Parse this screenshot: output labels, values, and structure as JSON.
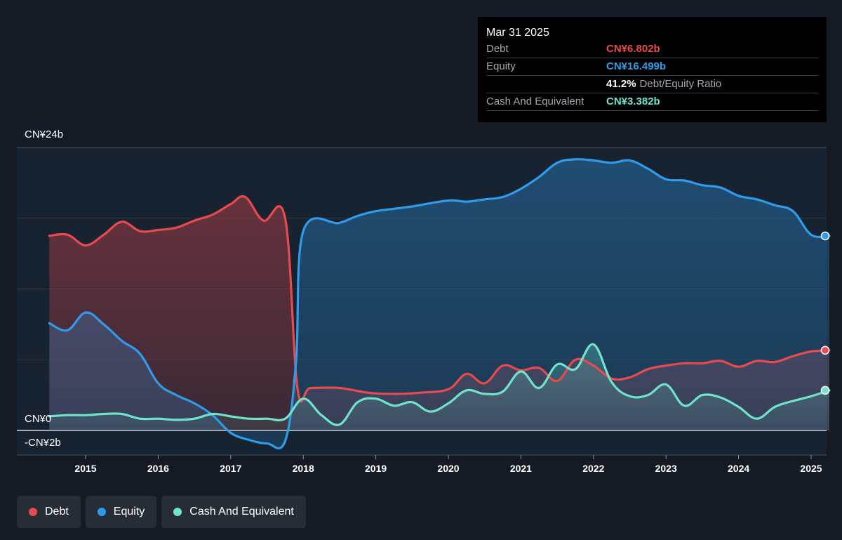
{
  "tooltip": {
    "date": "Mar 31 2025",
    "debt_label": "Debt",
    "debt_value": "CN¥6.802b",
    "equity_label": "Equity",
    "equity_value": "CN¥16.499b",
    "ratio_value": "41.2%",
    "ratio_label": "Debt/Equity Ratio",
    "cash_label": "Cash And Equivalent",
    "cash_value": "CN¥3.382b"
  },
  "y_axis": {
    "top_label": "CN¥24b",
    "zero_label": "CN¥0",
    "bottom_label": "-CN¥2b"
  },
  "legend": [
    {
      "label": "Debt",
      "color": "#e84a4f"
    },
    {
      "label": "Equity",
      "color": "#2f9bea"
    },
    {
      "label": "Cash And Equivalent",
      "color": "#6fe3cc"
    }
  ],
  "chart_data": {
    "type": "area",
    "x_ticks": [
      "2015",
      "2016",
      "2017",
      "2018",
      "2019",
      "2020",
      "2021",
      "2022",
      "2023",
      "2024",
      "2025"
    ],
    "ylim": [
      -2,
      24
    ],
    "grid": true,
    "series": [
      {
        "name": "Debt",
        "color": "#e84a4f",
        "points": [
          [
            2014.5,
            16.5
          ],
          [
            2014.75,
            16.6
          ],
          [
            2015.0,
            15.7
          ],
          [
            2015.25,
            16.6
          ],
          [
            2015.5,
            17.7
          ],
          [
            2015.75,
            16.9
          ],
          [
            2016.0,
            17.0
          ],
          [
            2016.25,
            17.2
          ],
          [
            2016.5,
            17.8
          ],
          [
            2016.75,
            18.3
          ],
          [
            2017.0,
            19.2
          ],
          [
            2017.2,
            19.8
          ],
          [
            2017.45,
            17.8
          ],
          [
            2017.75,
            18.0
          ],
          [
            2017.92,
            3.6
          ],
          [
            2018.1,
            3.6
          ],
          [
            2018.5,
            3.6
          ],
          [
            2018.9,
            3.2
          ],
          [
            2019.25,
            3.1
          ],
          [
            2019.6,
            3.2
          ],
          [
            2020.0,
            3.5
          ],
          [
            2020.25,
            4.8
          ],
          [
            2020.5,
            4.0
          ],
          [
            2020.75,
            5.5
          ],
          [
            2021.0,
            5.1
          ],
          [
            2021.25,
            5.3
          ],
          [
            2021.5,
            4.2
          ],
          [
            2021.75,
            6.0
          ],
          [
            2022.0,
            5.5
          ],
          [
            2022.25,
            4.4
          ],
          [
            2022.5,
            4.5
          ],
          [
            2022.75,
            5.2
          ],
          [
            2023.0,
            5.5
          ],
          [
            2023.25,
            5.7
          ],
          [
            2023.5,
            5.7
          ],
          [
            2023.75,
            5.9
          ],
          [
            2024.0,
            5.4
          ],
          [
            2024.25,
            5.9
          ],
          [
            2024.5,
            5.8
          ],
          [
            2024.75,
            6.3
          ],
          [
            2025.0,
            6.7
          ],
          [
            2025.25,
            6.8
          ]
        ]
      },
      {
        "name": "Equity",
        "color": "#2f9bea",
        "points": [
          [
            2014.5,
            9.1
          ],
          [
            2014.75,
            8.5
          ],
          [
            2015.0,
            10.0
          ],
          [
            2015.25,
            9.0
          ],
          [
            2015.5,
            7.6
          ],
          [
            2015.75,
            6.5
          ],
          [
            2016.0,
            4.0
          ],
          [
            2016.25,
            3.0
          ],
          [
            2016.5,
            2.3
          ],
          [
            2016.75,
            1.3
          ],
          [
            2017.0,
            -0.2
          ],
          [
            2017.25,
            -0.8
          ],
          [
            2017.5,
            -1.1
          ],
          [
            2017.75,
            -0.9
          ],
          [
            2017.9,
            5.8
          ],
          [
            2018.0,
            16.9
          ],
          [
            2018.5,
            17.6
          ],
          [
            2018.75,
            18.2
          ],
          [
            2019.0,
            18.6
          ],
          [
            2019.25,
            18.8
          ],
          [
            2019.5,
            19.0
          ],
          [
            2020.0,
            19.5
          ],
          [
            2020.25,
            19.4
          ],
          [
            2020.5,
            19.6
          ],
          [
            2020.75,
            19.8
          ],
          [
            2021.0,
            20.5
          ],
          [
            2021.25,
            21.5
          ],
          [
            2021.5,
            22.7
          ],
          [
            2021.75,
            23.0
          ],
          [
            2022.0,
            22.9
          ],
          [
            2022.25,
            22.7
          ],
          [
            2022.5,
            22.9
          ],
          [
            2022.75,
            22.2
          ],
          [
            2023.0,
            21.3
          ],
          [
            2023.25,
            21.2
          ],
          [
            2023.5,
            20.8
          ],
          [
            2023.75,
            20.6
          ],
          [
            2024.0,
            19.9
          ],
          [
            2024.25,
            19.6
          ],
          [
            2024.5,
            19.1
          ],
          [
            2024.75,
            18.6
          ],
          [
            2025.0,
            16.6
          ],
          [
            2025.25,
            16.5
          ]
        ]
      },
      {
        "name": "Cash And Equivalent",
        "color": "#6fe3cc",
        "points": [
          [
            2014.5,
            1.2
          ],
          [
            2014.75,
            1.3
          ],
          [
            2015.0,
            1.3
          ],
          [
            2015.25,
            1.4
          ],
          [
            2015.5,
            1.4
          ],
          [
            2015.75,
            1.0
          ],
          [
            2016.0,
            1.0
          ],
          [
            2016.25,
            0.9
          ],
          [
            2016.5,
            1.0
          ],
          [
            2016.75,
            1.4
          ],
          [
            2017.0,
            1.2
          ],
          [
            2017.25,
            1.0
          ],
          [
            2017.5,
            1.0
          ],
          [
            2017.75,
            1.0
          ],
          [
            2018.0,
            2.7
          ],
          [
            2018.25,
            1.3
          ],
          [
            2018.5,
            0.5
          ],
          [
            2018.75,
            2.4
          ],
          [
            2019.0,
            2.7
          ],
          [
            2019.25,
            2.1
          ],
          [
            2019.5,
            2.4
          ],
          [
            2019.75,
            1.6
          ],
          [
            2020.0,
            2.3
          ],
          [
            2020.25,
            3.4
          ],
          [
            2020.5,
            3.1
          ],
          [
            2020.75,
            3.3
          ],
          [
            2021.0,
            5.0
          ],
          [
            2021.25,
            3.6
          ],
          [
            2021.5,
            5.6
          ],
          [
            2021.75,
            5.2
          ],
          [
            2022.0,
            7.3
          ],
          [
            2022.25,
            4.1
          ],
          [
            2022.5,
            2.9
          ],
          [
            2022.75,
            3.0
          ],
          [
            2023.0,
            3.9
          ],
          [
            2023.25,
            2.1
          ],
          [
            2023.5,
            3.0
          ],
          [
            2023.75,
            2.8
          ],
          [
            2024.0,
            2.0
          ],
          [
            2024.25,
            1.0
          ],
          [
            2024.5,
            2.0
          ],
          [
            2024.75,
            2.5
          ],
          [
            2025.0,
            2.9
          ],
          [
            2025.25,
            3.4
          ]
        ]
      }
    ]
  }
}
